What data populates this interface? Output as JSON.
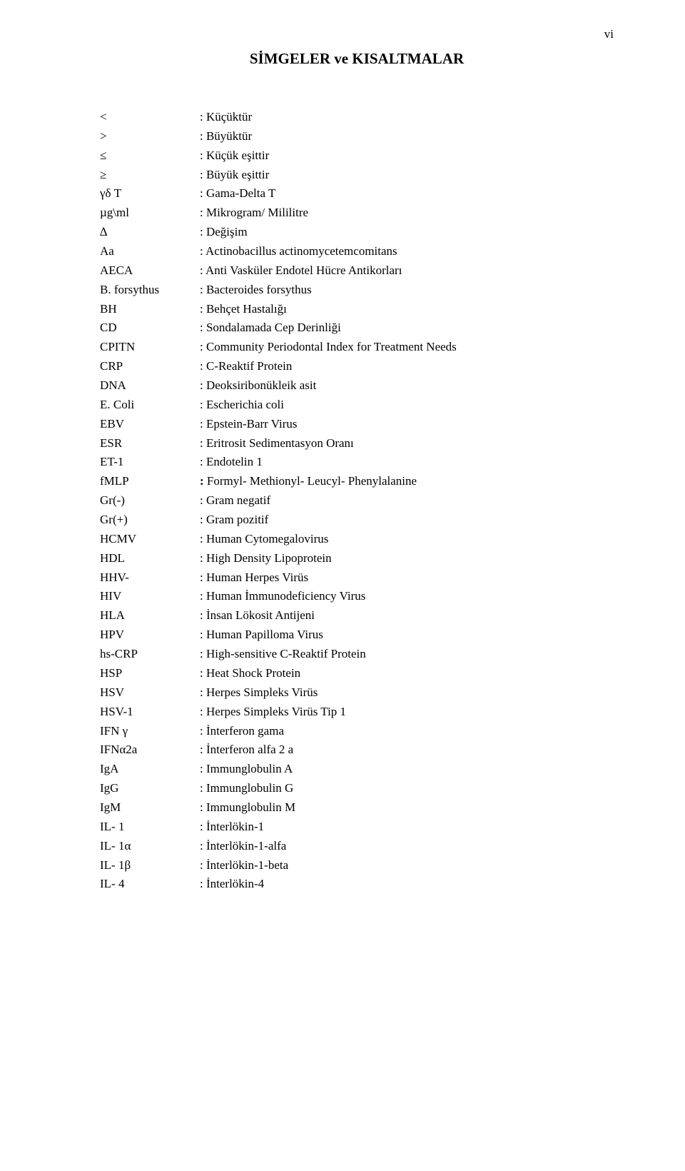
{
  "page_number": "vi",
  "title": "SİMGELER ve KISALTMALAR",
  "entries": [
    {
      "abbr": "<",
      "def": ": Küçüktür"
    },
    {
      "abbr": ">",
      "def": ": Büyüktür"
    },
    {
      "abbr": "≤",
      "def": ": Küçük eşittir"
    },
    {
      "abbr": "≥",
      "def": ": Büyük eşittir"
    },
    {
      "abbr": "γδ T",
      "def": ": Gama-Delta T"
    },
    {
      "abbr": "µg\\ml",
      "def": ": Mikrogram/ Mililitre"
    },
    {
      "abbr": "∆",
      "def": ": Değişim"
    },
    {
      "abbr": "Aa",
      "def": ": Actinobacillus actinomycetemcomitans"
    },
    {
      "abbr": "AECA",
      "def": ": Anti Vasküler Endotel Hücre Antikorları"
    },
    {
      "abbr": "B. forsythus",
      "def": ": Bacteroides forsythus"
    },
    {
      "abbr": "BH",
      "def": ": Behçet Hastalığı"
    },
    {
      "abbr": "CD",
      "def": ": Sondalamada Cep Derinliği"
    },
    {
      "abbr": "CPITN",
      "def": ": Community Periodontal Index for Treatment Needs"
    },
    {
      "abbr": "CRP",
      "def": ": C-Reaktif Protein"
    },
    {
      "abbr": "DNA",
      "def": ": Deoksiribonükleik asit"
    },
    {
      "abbr": "E. Coli",
      "def": ": Escherichia coli"
    },
    {
      "abbr": "EBV",
      "def": ": Epstein-Barr Virus"
    },
    {
      "abbr": "ESR",
      "def": ": Eritrosit Sedimentasyon Oranı"
    },
    {
      "abbr": "ET-1",
      "def": ": Endotelin 1"
    },
    {
      "abbr": "fMLP",
      "def": ": Formyl- Methionyl- Leucyl- Phenylalanine"
    },
    {
      "abbr": "Gr(-)",
      "def": ": Gram negatif"
    },
    {
      "abbr": "Gr(+)",
      "def": ": Gram pozitif"
    },
    {
      "abbr": "HCMV",
      "def": ": Human Cytomegalovirus"
    },
    {
      "abbr": "HDL",
      "def": ": High Density Lipoprotein"
    },
    {
      "abbr": "HHV-",
      "def": ": Human Herpes Virüs"
    },
    {
      "abbr": "HIV",
      "def": ": Human İmmunodeficiency Virus"
    },
    {
      "abbr": "HLA",
      "def": ": İnsan Lökosit Antijeni"
    },
    {
      "abbr": "HPV",
      "def": ": Human Papilloma Virus"
    },
    {
      "abbr": "hs-CRP",
      "def": ": High-sensitive C-Reaktif Protein"
    },
    {
      "abbr": "HSP",
      "def": ": Heat Shock Protein"
    },
    {
      "abbr": "HSV",
      "def": ": Herpes Simpleks Virüs"
    },
    {
      "abbr": "HSV-1",
      "def": ": Herpes Simpleks Virüs Tip 1"
    },
    {
      "abbr": "IFN γ",
      "def": ": İnterferon gama"
    },
    {
      "abbr": "IFNα2a",
      "def": ": İnterferon alfa 2 a"
    },
    {
      "abbr": "IgA",
      "def": ": Immunglobulin A"
    },
    {
      "abbr": "IgG",
      "def": ": Immunglobulin G"
    },
    {
      "abbr": "IgM",
      "def": ": Immunglobulin M"
    },
    {
      "abbr": "IL- 1",
      "def": ": İnterlökin-1"
    },
    {
      "abbr": "IL- 1α",
      "def": ": İnterlökin-1-alfa"
    },
    {
      "abbr": "IL- 1β",
      "def": ": İnterlökin-1-beta"
    },
    {
      "abbr": "IL- 4",
      "def": ": İnterlökin-4"
    }
  ]
}
